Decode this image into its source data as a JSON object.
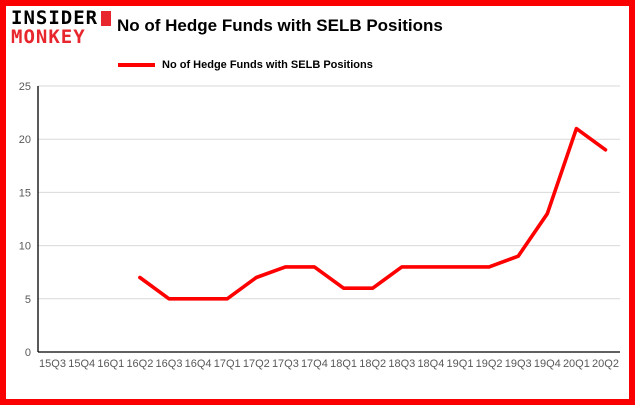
{
  "brand": {
    "line1": "INSIDER",
    "line2": "MONKEY"
  },
  "header": {
    "title": "No of Hedge Funds with SELB Positions"
  },
  "legend": {
    "label": "No of Hedge Funds with SELB Positions",
    "color": "#ff0000"
  },
  "colors": {
    "border": "#fb0000",
    "logo_red": "#e8262d",
    "line": "#ff0000",
    "grid": "#d9d9d9",
    "axis": "#000000",
    "tick_text": "#595959"
  },
  "chart_data": {
    "type": "line",
    "title": "No of Hedge Funds with SELB Positions",
    "xlabel": "",
    "ylabel": "",
    "categories": [
      "15Q3",
      "15Q4",
      "16Q1",
      "16Q2",
      "16Q3",
      "16Q4",
      "17Q1",
      "17Q2",
      "17Q3",
      "17Q4",
      "18Q1",
      "18Q2",
      "18Q3",
      "18Q4",
      "19Q1",
      "19Q2",
      "19Q3",
      "19Q4",
      "20Q1",
      "20Q2"
    ],
    "series": [
      {
        "name": "No of Hedge Funds with SELB Positions",
        "color": "#ff0000",
        "values": [
          null,
          null,
          null,
          7,
          5,
          5,
          5,
          7,
          8,
          8,
          6,
          6,
          8,
          8,
          8,
          8,
          9,
          13,
          21,
          19
        ]
      }
    ],
    "ylim": [
      0,
      25
    ],
    "yticks": [
      0,
      5,
      10,
      15,
      20,
      25
    ],
    "grid": true,
    "legend_position": "top-left"
  }
}
